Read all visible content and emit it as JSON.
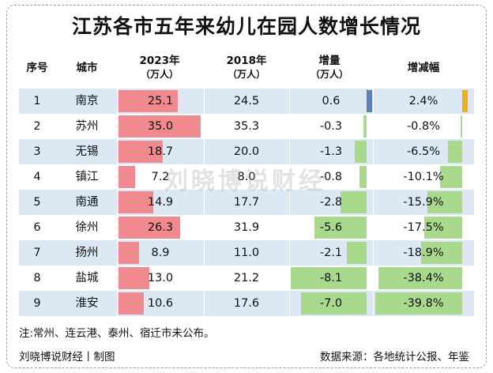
{
  "title": "江苏各市五年来幼儿在园人数增长情况",
  "headers": {
    "index": "序号",
    "city": "城市",
    "y2023": "2023年",
    "y2023_unit": "（万人）",
    "y2018": "2018年",
    "y2018_unit": "（万人）",
    "change": "增量",
    "change_unit": "（万人）",
    "rate": "增减幅"
  },
  "watermark": "刘晓博说财经",
  "note": "注:常州、连云港、泰州、宿迁市未公布。",
  "credit": "刘晓博说财经丨制图",
  "source": "数据来源：各地统计公报、年鉴",
  "colors": {
    "row_shade": "#dce8f4",
    "bar_2023": "#f08a8e",
    "bar_decrease": "#a9d98d",
    "bar_increase_change": "#5b7fbf",
    "bar_increase_rate": "#f1ac1a"
  },
  "chart_data": {
    "type": "table",
    "columns": [
      "序号",
      "城市",
      "2023年（万人）",
      "2018年（万人）",
      "增量（万人）",
      "增减幅"
    ],
    "rows": [
      {
        "index": "1",
        "city": "南京",
        "y2023": 25.1,
        "y2018": 24.5,
        "change": 0.6,
        "rate": 2.4,
        "y2023_text": "25.1",
        "y2018_text": "24.5",
        "change_text": "0.6",
        "rate_text": "2.4%"
      },
      {
        "index": "2",
        "city": "苏州",
        "y2023": 35.0,
        "y2018": 35.3,
        "change": -0.3,
        "rate": -0.8,
        "y2023_text": "35.0",
        "y2018_text": "35.3",
        "change_text": "-0.3",
        "rate_text": "-0.8%"
      },
      {
        "index": "3",
        "city": "无锡",
        "y2023": 18.7,
        "y2018": 20.0,
        "change": -1.3,
        "rate": -6.5,
        "y2023_text": "18.7",
        "y2018_text": "20.0",
        "change_text": "-1.3",
        "rate_text": "-6.5%"
      },
      {
        "index": "4",
        "city": "镇江",
        "y2023": 7.2,
        "y2018": 8.0,
        "change": -0.8,
        "rate": -10.1,
        "y2023_text": "7.2",
        "y2018_text": "8.0",
        "change_text": "-0.8",
        "rate_text": "-10.1%"
      },
      {
        "index": "5",
        "city": "南通",
        "y2023": 14.9,
        "y2018": 17.7,
        "change": -2.8,
        "rate": -15.9,
        "y2023_text": "14.9",
        "y2018_text": "17.7",
        "change_text": "-2.8",
        "rate_text": "-15.9%"
      },
      {
        "index": "6",
        "city": "徐州",
        "y2023": 26.3,
        "y2018": 31.9,
        "change": -5.6,
        "rate": -17.5,
        "y2023_text": "26.3",
        "y2018_text": "31.9",
        "change_text": "-5.6",
        "rate_text": "-17.5%"
      },
      {
        "index": "7",
        "city": "扬州",
        "y2023": 8.9,
        "y2018": 11.0,
        "change": -2.1,
        "rate": -18.9,
        "y2023_text": "8.9",
        "y2018_text": "11.0",
        "change_text": "-2.1",
        "rate_text": "-18.9%"
      },
      {
        "index": "8",
        "city": "盐城",
        "y2023": 13.0,
        "y2018": 21.2,
        "change": -8.1,
        "rate": -38.4,
        "y2023_text": "13.0",
        "y2018_text": "21.2",
        "change_text": "-8.1",
        "rate_text": "-38.4%"
      },
      {
        "index": "9",
        "city": "淮安",
        "y2023": 10.6,
        "y2018": 17.6,
        "change": -7.0,
        "rate": -39.8,
        "y2023_text": "10.6",
        "y2018_text": "17.6",
        "change_text": "-7.0",
        "rate_text": "-39.8%"
      }
    ]
  }
}
